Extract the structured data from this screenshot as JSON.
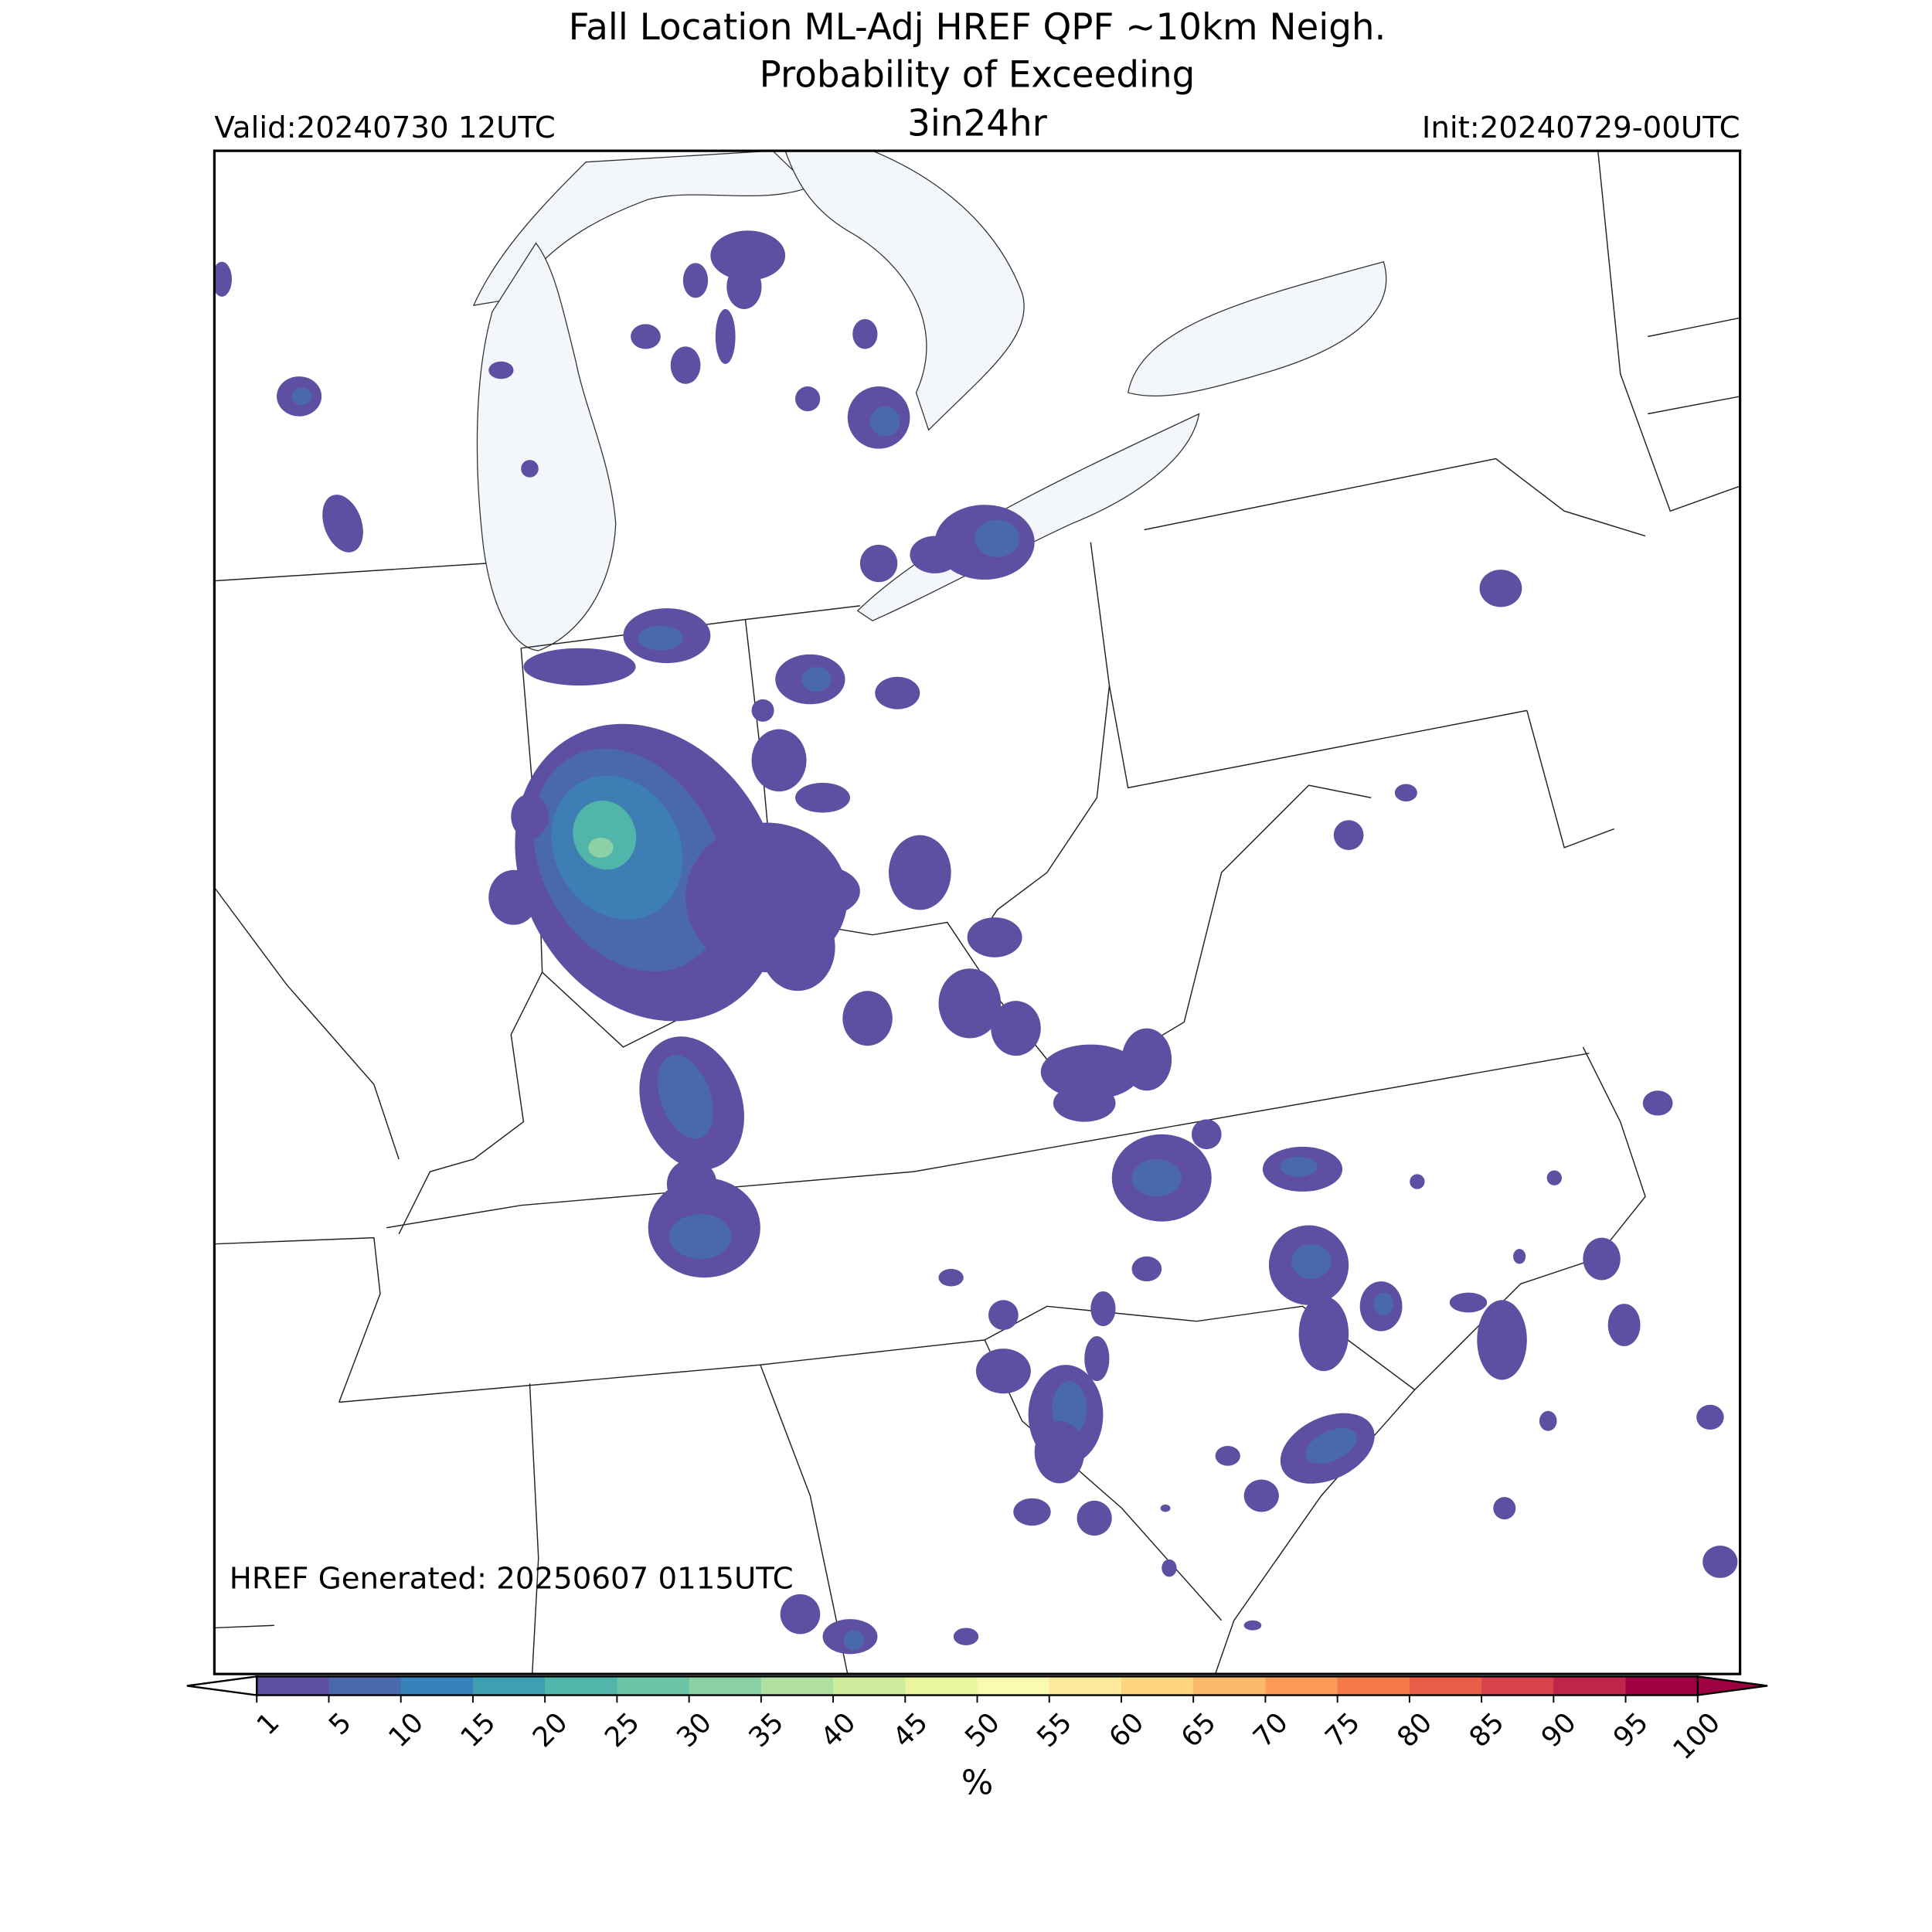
{
  "header": {
    "title": "Fall Location ML-Adj HREF QPF ~10km Neigh.",
    "subtitle": "Probability of Exceeding",
    "threshold": "3in24hr",
    "valid": "Valid:20240730 12UTC",
    "init": "Init:20240729-00UTC"
  },
  "map": {
    "generated": "HREF Generated: 20250607 0115UTC"
  },
  "colorbar": {
    "label": "%",
    "ticks": [
      1,
      5,
      10,
      15,
      20,
      25,
      30,
      35,
      40,
      45,
      50,
      55,
      60,
      65,
      70,
      75,
      80,
      85,
      90,
      95,
      100
    ],
    "colors": [
      "#5e4fa2",
      "#4a68ae",
      "#3683bb",
      "#3d9fb1",
      "#51b6a9",
      "#6cc4a4",
      "#8cd1a4",
      "#b0dfa2",
      "#cfec9d",
      "#e9f69d",
      "#f8fbb0",
      "#fee99a",
      "#fed481",
      "#fdb96a",
      "#fc9b58",
      "#f67b4a",
      "#e95d47",
      "#d7434d",
      "#be254a",
      "#9e0142"
    ],
    "under_color": "#ffffff",
    "over_color": "#9e0142"
  }
}
